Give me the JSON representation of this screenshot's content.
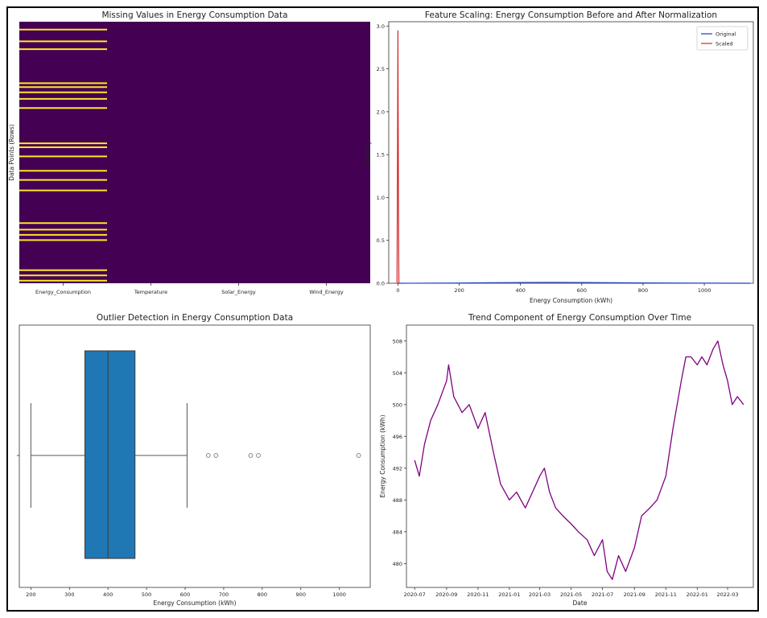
{
  "chart_data": [
    {
      "type": "heatmap",
      "title": "Missing Values in Energy Consumption Data",
      "ylabel": "Data Points (Rows)",
      "xlabel": "",
      "columns": [
        "Energy_Consumption",
        "Temperature",
        "Solar_Energy",
        "Wind_Energy"
      ],
      "colors": {
        "present": "#440154",
        "missing": "#fde725"
      },
      "missing_rows_fraction": {
        "Energy_Consumption": [
          0.03,
          0.075,
          0.105,
          0.235,
          0.25,
          0.27,
          0.295,
          0.33,
          0.465,
          0.48,
          0.515,
          0.57,
          0.605,
          0.645,
          0.77,
          0.795,
          0.815,
          0.835,
          0.95,
          0.97,
          0.99
        ],
        "Temperature": [],
        "Solar_Energy": [],
        "Wind_Energy": []
      }
    },
    {
      "type": "line",
      "title": "Feature Scaling: Energy Consumption Before and After Normalization",
      "xlabel": "Energy Consumption (kWh)",
      "ylabel": "Density",
      "xlim": [
        -30,
        1160
      ],
      "ylim": [
        0,
        3.05
      ],
      "xticks": [
        0,
        200,
        400,
        600,
        800,
        1000
      ],
      "yticks": [
        0.0,
        0.5,
        1.0,
        1.5,
        2.0,
        2.5,
        3.0
      ],
      "legend": "top-right",
      "series": [
        {
          "name": "Original",
          "color": "#1f3fbf",
          "x": [
            0,
            200,
            300,
            400,
            500,
            600,
            700,
            800,
            1000,
            1150
          ],
          "y": [
            0,
            0.003,
            0.006,
            0.008,
            0.009,
            0.008,
            0.006,
            0.004,
            0.002,
            0
          ]
        },
        {
          "name": "Scaled",
          "color": "#d62728",
          "x": [
            -3,
            -1.5,
            0,
            1.5,
            3
          ],
          "y": [
            0,
            1.2,
            2.95,
            1.2,
            0
          ]
        }
      ]
    },
    {
      "type": "box",
      "title": "Outlier Detection in Energy Consumption Data",
      "xlabel": "Energy Consumption (kWh)",
      "xlim": [
        170,
        1080
      ],
      "xticks": [
        200,
        300,
        400,
        500,
        600,
        700,
        800,
        900,
        1000
      ],
      "color": "#1f77b4",
      "stats": {
        "whislo": 200,
        "q1": 340,
        "med": 400,
        "q3": 470,
        "whishi": 605
      },
      "outliers": [
        660,
        680,
        770,
        790,
        1050
      ]
    },
    {
      "type": "line",
      "title": "Trend Component of Energy Consumption Over Time",
      "xlabel": "Date",
      "ylabel": "Energy Consumption (kWh)",
      "color": "#800080",
      "ylim": [
        477,
        510
      ],
      "yticks": [
        480,
        484,
        488,
        492,
        496,
        500,
        504,
        508
      ],
      "xticks": [
        "2020-07",
        "2020-09",
        "2020-11",
        "2021-01",
        "2021-03",
        "2021-05",
        "2021-07",
        "2021-09",
        "2021-11",
        "2022-01",
        "2022-03"
      ],
      "x": [
        "2020-07-01",
        "2020-07-10",
        "2020-07-20",
        "2020-08-01",
        "2020-08-15",
        "2020-09-01",
        "2020-09-05",
        "2020-09-15",
        "2020-10-01",
        "2020-10-15",
        "2020-11-01",
        "2020-11-15",
        "2020-12-01",
        "2020-12-15",
        "2021-01-01",
        "2021-01-15",
        "2021-02-01",
        "2021-02-15",
        "2021-03-01",
        "2021-03-10",
        "2021-03-20",
        "2021-04-01",
        "2021-04-15",
        "2021-05-01",
        "2021-05-15",
        "2021-06-01",
        "2021-06-15",
        "2021-07-01",
        "2021-07-10",
        "2021-07-20",
        "2021-08-01",
        "2021-08-15",
        "2021-09-01",
        "2021-09-15",
        "2021-10-01",
        "2021-10-15",
        "2021-11-01",
        "2021-11-15",
        "2021-12-01",
        "2021-12-10",
        "2021-12-20",
        "2022-01-01",
        "2022-01-10",
        "2022-01-20",
        "2022-02-01",
        "2022-02-10",
        "2022-02-20",
        "2022-03-01",
        "2022-03-10",
        "2022-03-20",
        "2022-04-01"
      ],
      "y": [
        493,
        491,
        495,
        498,
        500,
        503,
        505,
        501,
        499,
        500,
        497,
        499,
        494,
        490,
        488,
        489,
        487,
        489,
        491,
        492,
        489,
        487,
        486,
        485,
        484,
        483,
        481,
        483,
        479,
        478,
        481,
        479,
        482,
        486,
        487,
        488,
        491,
        497,
        503,
        506,
        506,
        505,
        506,
        505,
        507,
        508,
        505,
        503,
        500,
        501,
        500
      ]
    }
  ]
}
